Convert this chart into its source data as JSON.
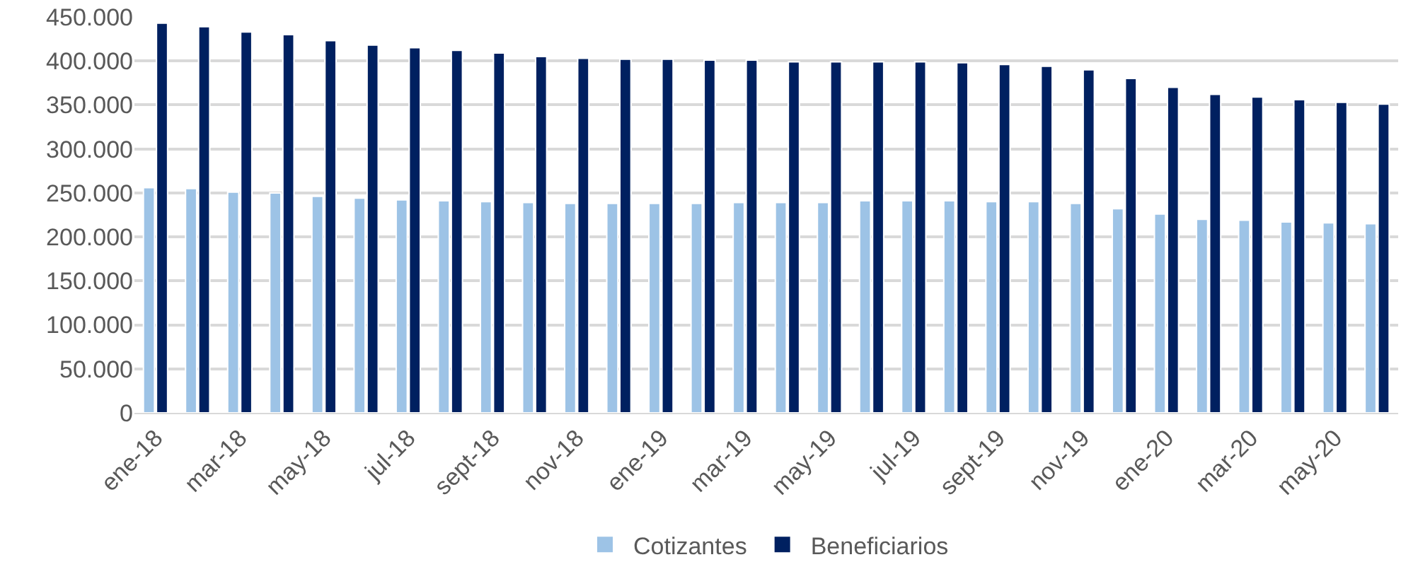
{
  "chart_data": {
    "type": "bar",
    "categories": [
      "ene-18",
      null,
      "mar-18",
      null,
      "may-18",
      null,
      "jul-18",
      null,
      "sept-18",
      null,
      "nov-18",
      null,
      "ene-19",
      null,
      "mar-19",
      null,
      "may-19",
      null,
      "jul-19",
      null,
      "sept-19",
      null,
      "nov-19",
      null,
      "ene-20",
      null,
      "mar-20",
      null,
      "may-20",
      null
    ],
    "series": [
      {
        "name": "Cotizantes",
        "color": "#9dc3e6",
        "values": [
          256000,
          255000,
          251000,
          250000,
          246000,
          244000,
          242000,
          241000,
          240000,
          239000,
          238000,
          238000,
          238000,
          238000,
          239000,
          239000,
          239000,
          241000,
          241000,
          241000,
          240000,
          240000,
          238000,
          232000,
          226000,
          220000,
          219000,
          217000,
          216000,
          215000
        ]
      },
      {
        "name": "Beneficiarios",
        "color": "#002060",
        "values": [
          443000,
          439000,
          433000,
          430000,
          423000,
          418000,
          415000,
          412000,
          409000,
          405000,
          403000,
          402000,
          402000,
          401000,
          401000,
          399000,
          399000,
          399000,
          399000,
          398000,
          396000,
          394000,
          390000,
          380000,
          370000,
          362000,
          359000,
          356000,
          353000,
          351000
        ]
      }
    ],
    "ylim": [
      0,
      450000
    ],
    "yticks": [
      {
        "value": 0,
        "label": "0"
      },
      {
        "value": 50000,
        "label": "50.000"
      },
      {
        "value": 100000,
        "label": "100.000"
      },
      {
        "value": 150000,
        "label": "150.000"
      },
      {
        "value": 200000,
        "label": "200.000"
      },
      {
        "value": 250000,
        "label": "250.000"
      },
      {
        "value": 300000,
        "label": "300.000"
      },
      {
        "value": 350000,
        "label": "350.000"
      },
      {
        "value": 400000,
        "label": "400.000"
      },
      {
        "value": 450000,
        "label": "450.000"
      }
    ],
    "grid": "y",
    "legend": "bottom"
  }
}
